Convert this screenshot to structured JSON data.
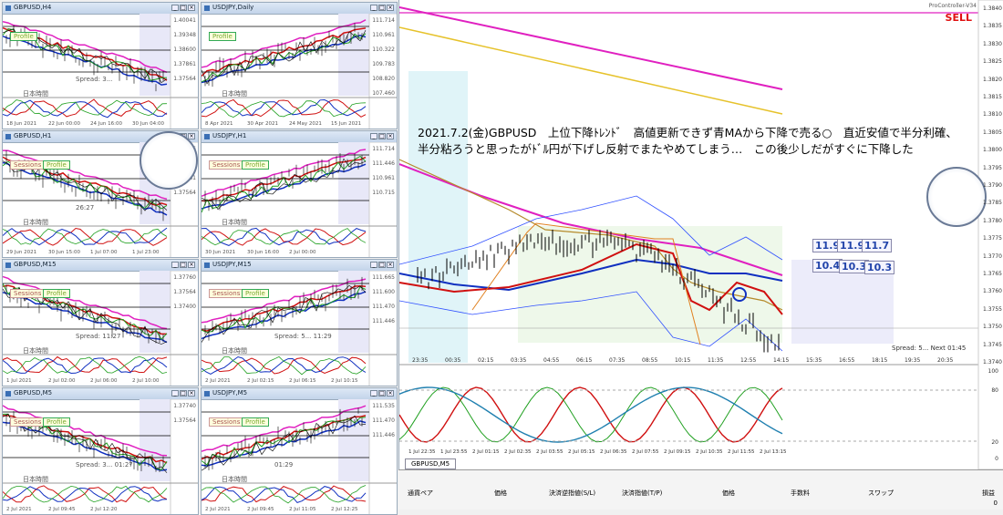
{
  "mini_charts": [
    {
      "title": "GBPUSD,H4",
      "badges": [
        "Profile"
      ],
      "prices": [
        "1.40041",
        "1.39348",
        "1.38600",
        "1.37861",
        "1.37564"
      ],
      "times": [
        "18 Jun 2021",
        "22 Jun 00:00",
        "24 Jun 16:00",
        "30 Jun 04:00"
      ],
      "label": "日本時間",
      "spread": "Spread: 3..."
    },
    {
      "title": "USDJPY,Daily",
      "badges": [
        "Profile"
      ],
      "prices": [
        "111.714",
        "110.961",
        "110.322",
        "109.783",
        "108.820",
        "107.460"
      ],
      "times": [
        "8 Apr 2021",
        "30 Apr 2021",
        "24 May 2021",
        "15 Jun 2021"
      ],
      "label": "日本時間",
      "spread": ""
    },
    {
      "title": "GBPUSD,H1",
      "badges": [
        "Sessions",
        "Profile"
      ],
      "prices": [
        "1.37476",
        "1.38600",
        "1.37861",
        "1.37564"
      ],
      "times": [
        "29 Jun 2021",
        "30 Jun 15:00",
        "1 Jul 07:00",
        "1 Jul 23:00"
      ],
      "label": "日本時間",
      "spread": "26:27"
    },
    {
      "title": "USDJPY,H1",
      "badges": [
        "Sessions",
        "Profile"
      ],
      "prices": [
        "111.714",
        "111.446",
        "110.961",
        "110.715"
      ],
      "times": [
        "30 Jun 2021",
        "30 Jun 16:00",
        "2 Jul 00:00"
      ],
      "label": "日本時間",
      "spread": ""
    },
    {
      "title": "GBPUSD,M15",
      "badges": [
        "Sessions",
        "Profile"
      ],
      "prices": [
        "1.37760",
        "1.37564",
        "1.37400"
      ],
      "times": [
        "1 Jul 2021",
        "2 Jul 02:00",
        "2 Jul 06:00",
        "2 Jul 10:00"
      ],
      "label": "日本時間",
      "spread": "Spread: 11:27"
    },
    {
      "title": "USDJPY,M15",
      "badges": [
        "Sessions",
        "Profile"
      ],
      "prices": [
        "111.665",
        "111.600",
        "111.470",
        "111.446"
      ],
      "times": [
        "2 Jul 2021",
        "2 Jul 02:15",
        "2 Jul 06:15",
        "2 Jul 10:15"
      ],
      "label": "日本時間",
      "spread": "Spread: 5... 11:29"
    },
    {
      "title": "GBPUSD,M5",
      "badges": [
        "Sessions",
        "Profile"
      ],
      "prices": [
        "1.37740",
        "1.37564"
      ],
      "times": [
        "2 Jul 2021",
        "2 Jul 09:45",
        "2 Jul 12:20"
      ],
      "label": "日本時間",
      "spread": "Spread: 3... 01:27"
    },
    {
      "title": "USDJPY,M5",
      "badges": [
        "Sessions",
        "Profile"
      ],
      "prices": [
        "111.535",
        "111.470",
        "111.446"
      ],
      "times": [
        "2 Jul 2021",
        "2 Jul 09:45",
        "2 Jul 11:05",
        "2 Jul 12:25"
      ],
      "label": "日本時間",
      "spread": "01:29"
    }
  ],
  "main": {
    "topright_text": "ProController-V34",
    "sell_label": "SELL",
    "annotation_line1": "2021.7.2(金)GBPUSD　上位下降ﾄﾚﾝﾄﾞ　高値更新できず青MAから下降で売る○　直近安値で半分利確、",
    "annotation_line2": "半分粘ろうと思ったがﾄﾞﾙ円が下げし反射でまたやめてしまう…　この後少しだがすぐに下降した",
    "numbers_row1": [
      "11.9",
      "11.9",
      "11.7"
    ],
    "numbers_row2": [
      "10.4",
      "10.3",
      "10.3"
    ],
    "spread": "Spread: 5... Next 01:45",
    "time_labels": [
      "23:35",
      "00:35",
      "02:15",
      "03:35",
      "04:55",
      "06:15",
      "07:35",
      "08:55",
      "10:15",
      "11:35",
      "12:55",
      "14:15",
      "15:35",
      "16:55",
      "18:15",
      "19:35",
      "20:35"
    ],
    "price_labels": [
      "1.3840",
      "1.3835",
      "1.3830",
      "1.3825",
      "1.3820",
      "1.3815",
      "1.3810",
      "1.3805",
      "1.3800",
      "1.3795",
      "1.3790",
      "1.3785",
      "1.3780",
      "1.3775",
      "1.3770",
      "1.3765",
      "1.3760",
      "1.3755",
      "1.3750",
      "1.3745",
      "1.3740"
    ],
    "osc_labels": [
      "100",
      "80",
      "20",
      "0"
    ],
    "osc_time_labels": [
      "1 Jul 22:35",
      "1 Jul 23:55",
      "2 Jul 01:15",
      "2 Jul 02:35",
      "2 Jul 03:55",
      "2 Jul 05:15",
      "2 Jul 06:35",
      "2 Jul 07:55",
      "2 Jul 09:15",
      "2 Jul 10:35",
      "2 Jul 11:55",
      "2 Jul 13:15"
    ],
    "active_tab": "GBPUSD,M5"
  },
  "bottom": {
    "headers": [
      "通貨ペア",
      "価格",
      "決済逆指値(S/L)",
      "決済指値(T/P)",
      "価格",
      "手数料",
      "スワップ",
      "損益"
    ],
    "bottom_right": "0"
  },
  "colors": {
    "magenta": "#e020c0",
    "gold": "#e6c22b",
    "red": "#d01010",
    "blue": "#1030c0",
    "green": "#20a020",
    "teal": "#2080b0"
  }
}
